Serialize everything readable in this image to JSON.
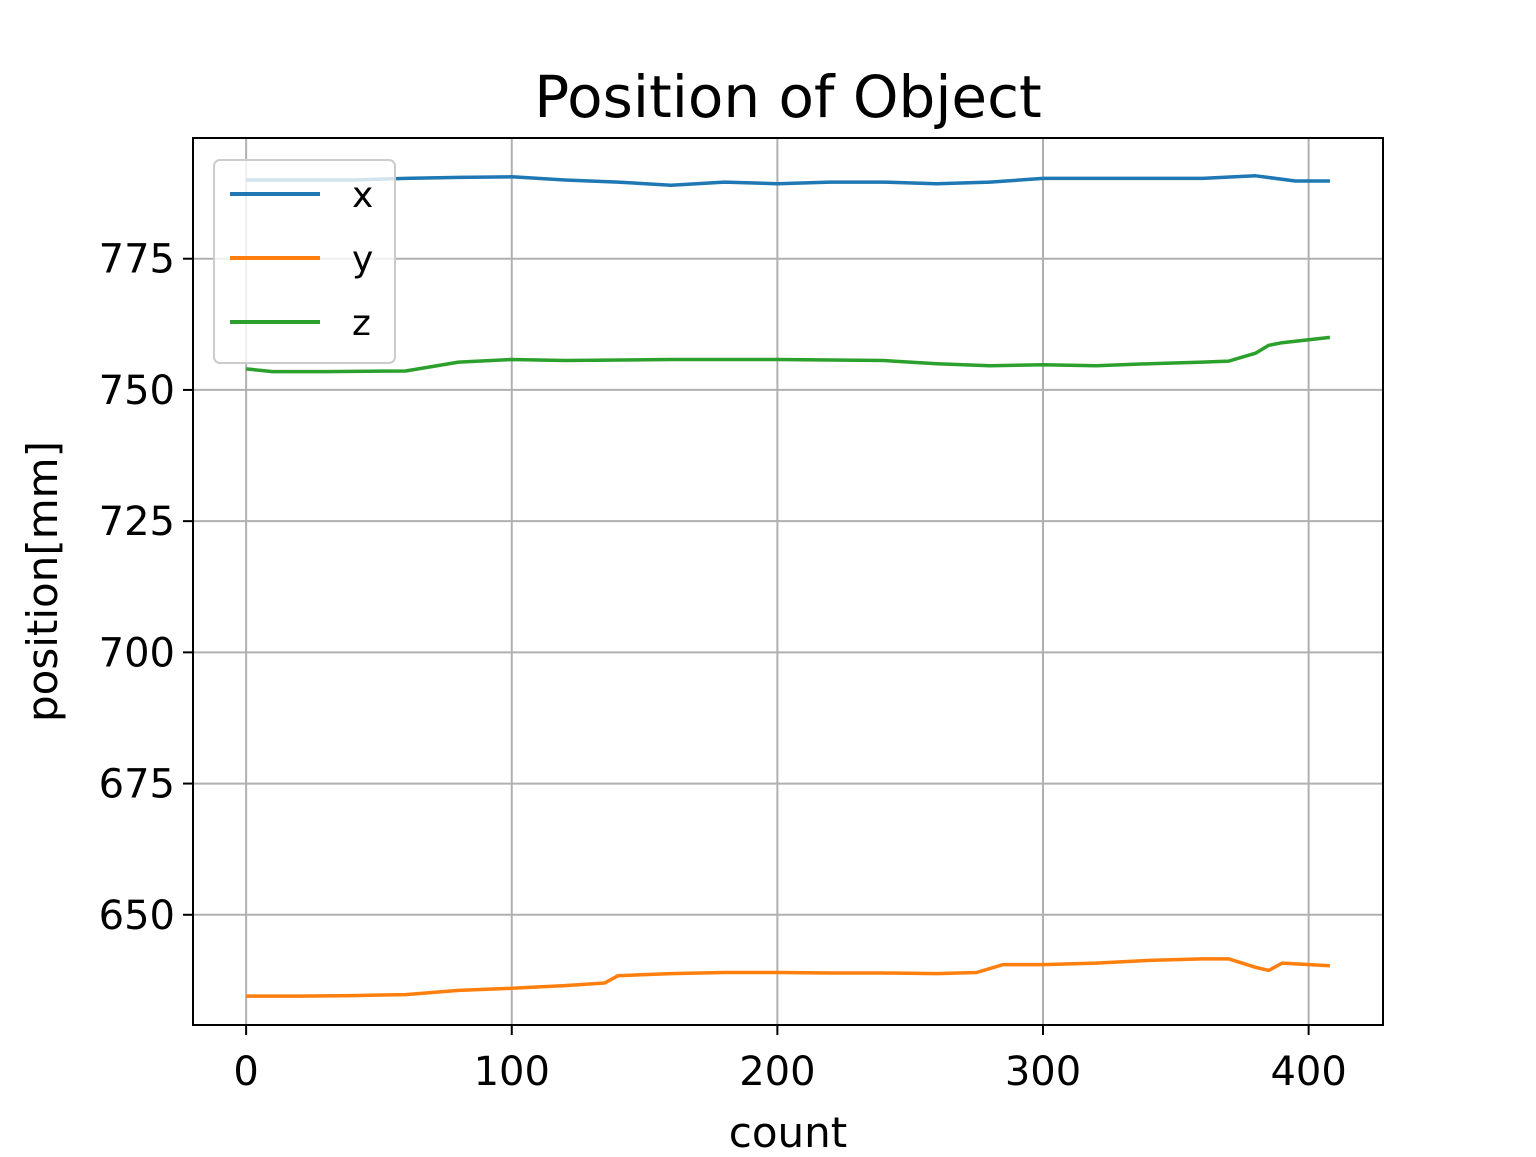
{
  "chart_data": {
    "type": "line",
    "title": "Position of Object",
    "xlabel": "count",
    "ylabel": "position[mm]",
    "xlim": [
      -20,
      428
    ],
    "ylim": [
      629,
      798
    ],
    "xticks": [
      0,
      100,
      200,
      300,
      400
    ],
    "yticks": [
      650,
      675,
      700,
      725,
      750,
      775
    ],
    "grid": true,
    "legend_position": "upper-left",
    "series": [
      {
        "name": "x",
        "color": "#1f77b4",
        "x": [
          0,
          20,
          40,
          60,
          80,
          100,
          120,
          140,
          160,
          180,
          200,
          220,
          240,
          260,
          280,
          300,
          320,
          340,
          360,
          380,
          395,
          408
        ],
        "y": [
          790,
          790,
          790,
          790.3,
          790.5,
          790.6,
          790,
          789.6,
          789,
          789.6,
          789.3,
          789.6,
          789.6,
          789.3,
          789.6,
          790.3,
          790.3,
          790.3,
          790.3,
          790.8,
          789.8,
          789.8
        ]
      },
      {
        "name": "y",
        "color": "#ff7f0e",
        "x": [
          0,
          20,
          40,
          60,
          80,
          100,
          120,
          135,
          140,
          160,
          180,
          200,
          220,
          240,
          260,
          275,
          285,
          300,
          320,
          340,
          360,
          370,
          380,
          385,
          390,
          408
        ],
        "y": [
          634.5,
          634.5,
          634.6,
          634.8,
          635.6,
          636,
          636.5,
          637,
          638.4,
          638.8,
          639,
          639,
          638.9,
          638.9,
          638.8,
          639,
          640.5,
          640.5,
          640.8,
          641.3,
          641.6,
          641.6,
          640,
          639.4,
          640.8,
          640.3
        ]
      },
      {
        "name": "z",
        "color": "#2ca02c",
        "x": [
          0,
          10,
          30,
          60,
          80,
          100,
          120,
          160,
          200,
          240,
          260,
          280,
          300,
          320,
          340,
          360,
          370,
          380,
          385,
          390,
          408
        ],
        "y": [
          754,
          753.5,
          753.5,
          753.6,
          755.3,
          755.8,
          755.6,
          755.8,
          755.8,
          755.6,
          755,
          754.6,
          754.8,
          754.6,
          755,
          755.3,
          755.5,
          757,
          758.5,
          759,
          760
        ]
      }
    ]
  }
}
